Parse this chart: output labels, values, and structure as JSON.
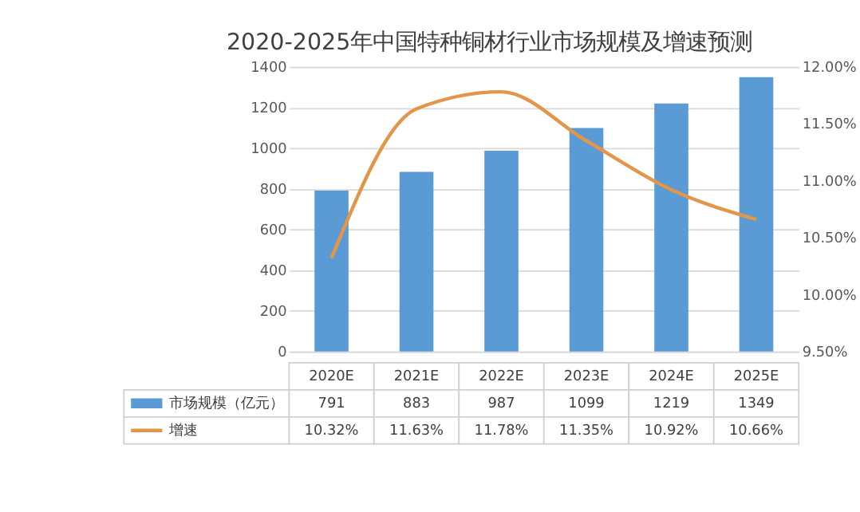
{
  "chart_data": {
    "type": "bar",
    "title": "2020-2025年中国特种铜材行业市场规模及增速预测",
    "categories": [
      "2020E",
      "2021E",
      "2022E",
      "2023E",
      "2024E",
      "2025E"
    ],
    "series": [
      {
        "name": "市场规模（亿元）",
        "color": "#5b9bd5",
        "values": [
          791,
          883,
          987,
          1099,
          1219,
          1349
        ],
        "value_labels": [
          "791",
          "883",
          "987",
          "1099",
          "1219",
          "1349"
        ]
      },
      {
        "name": "增速",
        "type": "line",
        "axis": "y2",
        "color": "#e3964a",
        "values": [
          10.32,
          11.63,
          11.78,
          11.35,
          10.92,
          10.66
        ],
        "value_labels": [
          "10.32%",
          "11.63%",
          "11.78%",
          "11.35%",
          "10.92%",
          "10.66%"
        ]
      }
    ],
    "ylim": [
      0,
      1400
    ],
    "yticks": [
      0,
      200,
      400,
      600,
      800,
      1000,
      1200,
      1400
    ],
    "y2lim": [
      9.5,
      12
    ],
    "y2ticks": [
      {
        "value": 9.5,
        "label": "9.50%"
      },
      {
        "value": 10,
        "label": "10.00%"
      },
      {
        "value": 10.5,
        "label": "10.50%"
      },
      {
        "value": 11,
        "label": "11.00%"
      },
      {
        "value": 11.5,
        "label": "11.50%"
      },
      {
        "value": 12,
        "label": "12.00%"
      }
    ],
    "grid": "y",
    "legend": "bottom",
    "marker": "none",
    "line_style": "solid"
  }
}
